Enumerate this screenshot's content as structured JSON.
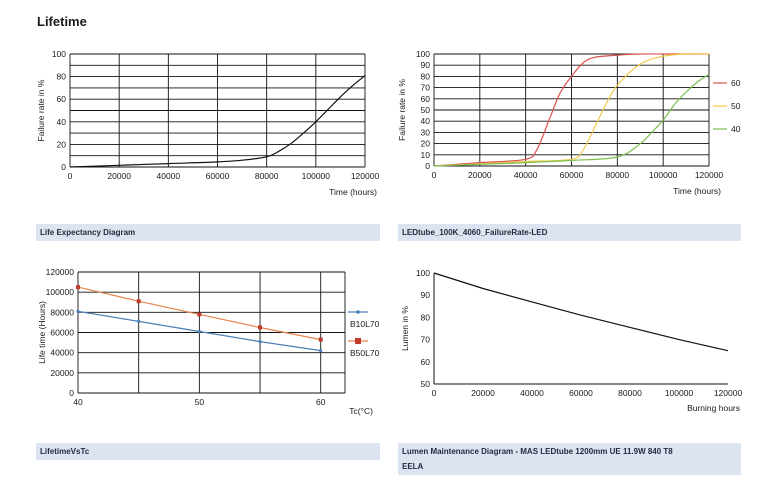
{
  "page_title": "Lifetime",
  "captions": {
    "c1": "Life Expectancy Diagram",
    "c2": "LEDtube_100K_4060_FailureRate-LED",
    "c3": "LifetimeVsTc",
    "c4_line1": "Lumen Maintenance Diagram - MAS LEDtube 1200mm UE 11.9W 840 T8",
    "c4_line2": "EELA"
  },
  "colors": {
    "caption_bg": "#dbe4f0",
    "grid": "#111111",
    "red": "#d9534f",
    "yellow": "#f2c94c",
    "green": "#7cbf4e",
    "orange_line": "#e8844e",
    "blue_line": "#4a7fb5"
  },
  "chart_data": [
    {
      "id": "life-expectancy",
      "type": "line",
      "title": "Life Expectancy Diagram",
      "xlabel": "Time (hours)",
      "ylabel": "Failure rate in %",
      "xlim": [
        0,
        120000
      ],
      "ylim": [
        0,
        100
      ],
      "xticks": [
        "0",
        "20000",
        "40000",
        "60000",
        "80000",
        "100000",
        "120000"
      ],
      "yticks": [
        "0",
        "20",
        "40",
        "60",
        "80",
        "100"
      ],
      "grid": true,
      "series": [
        {
          "name": "Failure rate",
          "color": "#111111",
          "x": [
            0,
            20000,
            40000,
            60000,
            70000,
            80000,
            85000,
            90000,
            95000,
            100000,
            105000,
            110000,
            115000,
            120000
          ],
          "y": [
            0,
            1.5,
            3,
            4.5,
            6,
            9,
            14,
            21,
            30,
            40,
            51,
            62,
            72,
            81
          ]
        }
      ]
    },
    {
      "id": "failure-rate-led",
      "type": "line",
      "title": "LEDtube_100K_4060_FailureRate-LED",
      "xlabel": "Time (hours)",
      "ylabel": "Failure rate in %",
      "xlim": [
        0,
        120000
      ],
      "ylim": [
        0,
        100
      ],
      "xticks": [
        "0",
        "20000",
        "40000",
        "60000",
        "80000",
        "100000",
        "120000"
      ],
      "yticks": [
        "0",
        "10",
        "20",
        "30",
        "40",
        "50",
        "60",
        "70",
        "80",
        "90",
        "100"
      ],
      "grid": true,
      "legend": "right",
      "series": [
        {
          "name": "60",
          "color": "#d9534f",
          "x": [
            0,
            20000,
            40000,
            45000,
            50000,
            55000,
            60000,
            65000,
            70000,
            80000,
            90000,
            100000,
            110000,
            120000
          ],
          "y": [
            0,
            3,
            6,
            15,
            40,
            65,
            80,
            92,
            97,
            99,
            100,
            100,
            100,
            100
          ]
        },
        {
          "name": "50",
          "color": "#f2c94c",
          "x": [
            0,
            20000,
            40000,
            60000,
            65000,
            70000,
            75000,
            80000,
            90000,
            100000,
            110000,
            120000
          ],
          "y": [
            0,
            2,
            4,
            6,
            14,
            34,
            55,
            72,
            91,
            98,
            100,
            100
          ]
        },
        {
          "name": "40",
          "color": "#7cbf4e",
          "x": [
            0,
            20000,
            40000,
            60000,
            80000,
            90000,
            95000,
            100000,
            105000,
            110000,
            115000,
            120000
          ],
          "y": [
            0,
            1.5,
            3,
            5,
            8,
            20,
            30,
            41,
            55,
            66,
            75,
            82
          ]
        }
      ]
    },
    {
      "id": "lifetime-vs-tc",
      "type": "line",
      "title": "LifetimeVsTc",
      "xlabel": "Tc(°C)",
      "ylabel": "Life time (Hours)",
      "xlim": [
        40,
        62
      ],
      "ylim": [
        0,
        120000
      ],
      "xticks": [
        "40",
        "50",
        "60"
      ],
      "yticks": [
        "0",
        "20000",
        "40000",
        "60000",
        "80000",
        "100000",
        "120000"
      ],
      "grid": true,
      "legend": "right",
      "series": [
        {
          "name": "B10L70",
          "color": "#4a7fb5",
          "x": [
            40,
            45,
            50,
            55,
            60
          ],
          "y": [
            81000,
            71000,
            61000,
            51000,
            42000
          ]
        },
        {
          "name": "B50L70",
          "color": "#e8844e",
          "x": [
            40,
            45,
            50,
            55,
            60
          ],
          "y": [
            105000,
            91000,
            78000,
            65000,
            53000
          ]
        }
      ]
    },
    {
      "id": "lumen-maintenance",
      "type": "line",
      "title": "Lumen Maintenance Diagram - MAS LEDtube 1200mm UE 11.9W 840 T8",
      "xlabel": "Burning hours",
      "ylabel": "Lumen in %",
      "xlim": [
        0,
        120000
      ],
      "ylim": [
        50,
        100
      ],
      "xticks": [
        "0",
        "20000",
        "40000",
        "60000",
        "80000",
        "100000",
        "120000"
      ],
      "yticks": [
        "50",
        "60",
        "70",
        "80",
        "90",
        "100"
      ],
      "grid": false,
      "series": [
        {
          "name": "Lumen",
          "color": "#111111",
          "x": [
            0,
            20000,
            40000,
            60000,
            80000,
            100000,
            120000
          ],
          "y": [
            100,
            93,
            87,
            81,
            75.5,
            70,
            65
          ]
        }
      ]
    }
  ]
}
